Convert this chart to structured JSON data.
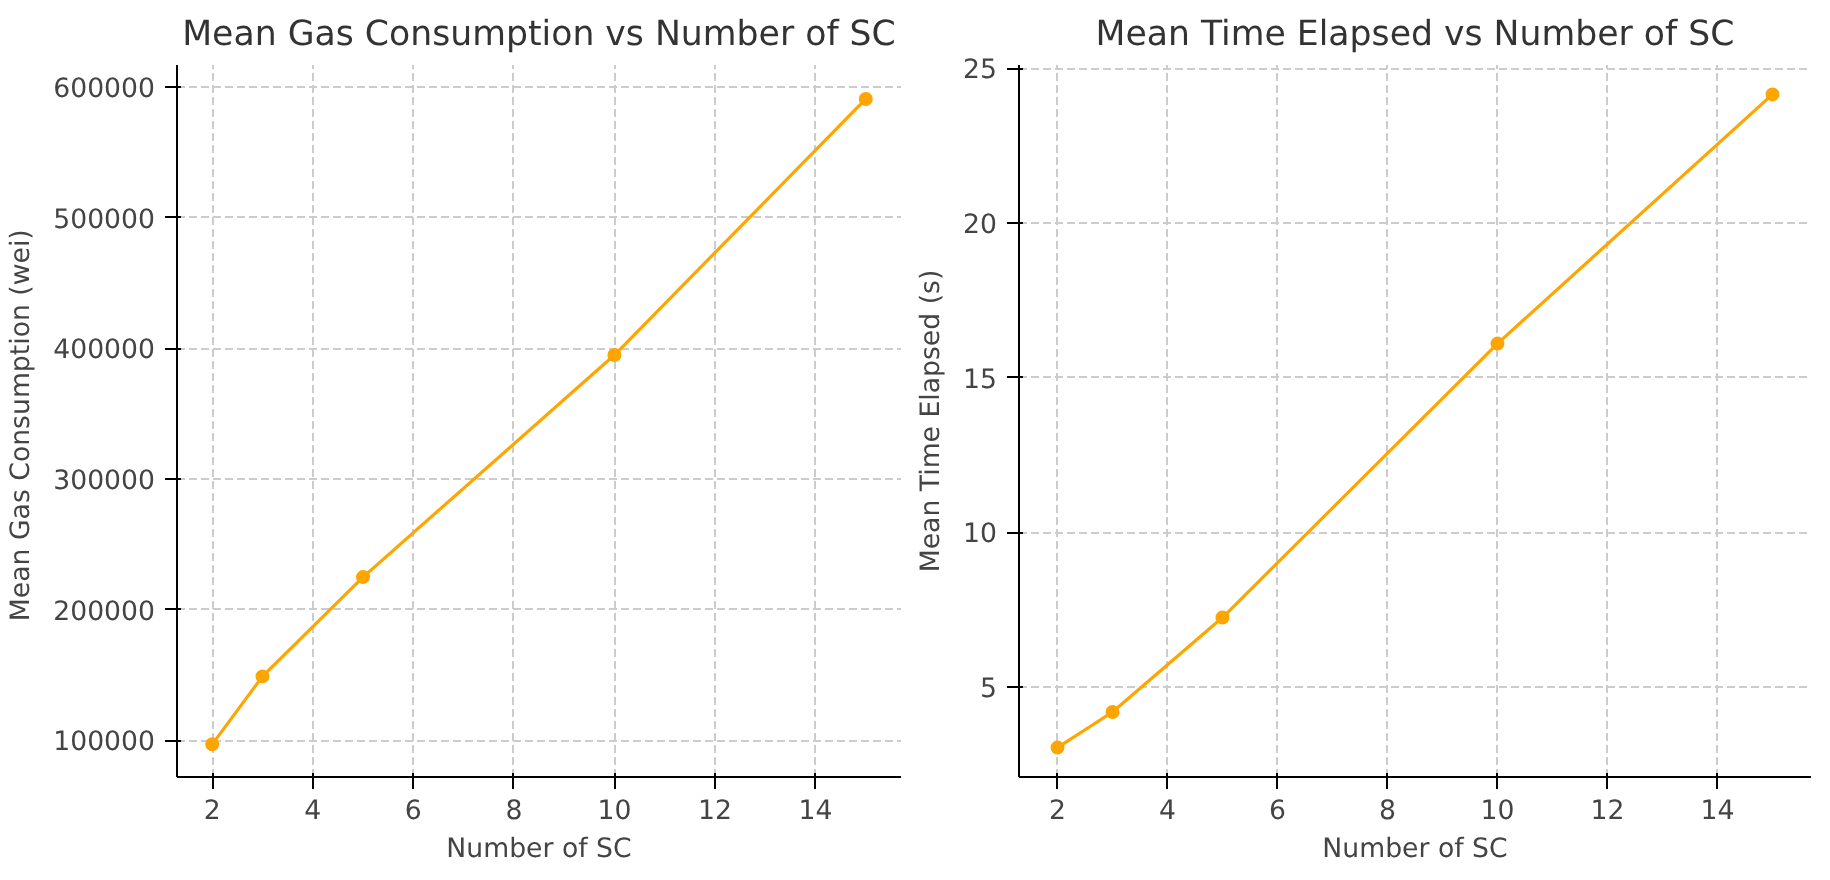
{
  "chart_data": [
    {
      "type": "line",
      "title": "Mean Gas Consumption vs Number of SC",
      "xlabel": "Number of SC",
      "ylabel": "Mean Gas Consumption  (wei)",
      "x": [
        2,
        3,
        5,
        10,
        15
      ],
      "series": [
        {
          "color": "#ffa500",
          "values": [
            97000,
            149000,
            225000,
            395000,
            591000
          ]
        }
      ],
      "xlim": [
        1.3,
        15.7
      ],
      "xticks": [
        2,
        4,
        6,
        8,
        10,
        12,
        14
      ],
      "ylim": [
        72000,
        617000
      ],
      "yticks": [
        100000,
        200000,
        300000,
        400000,
        500000,
        600000
      ],
      "grid": true,
      "marker": "circle",
      "line_style": "solid"
    },
    {
      "type": "line",
      "title": "Mean Time Elapsed vs Number of SC",
      "xlabel": "Number of SC",
      "ylabel": "Mean Time Elapsed (s)",
      "x": [
        2,
        3,
        5,
        10,
        15
      ],
      "series": [
        {
          "color": "#ffa500",
          "values": [
            3.05,
            4.2,
            7.25,
            16.1,
            24.15
          ]
        }
      ],
      "xlim": [
        1.3,
        15.7
      ],
      "xticks": [
        2,
        4,
        6,
        8,
        10,
        12,
        14
      ],
      "ylim": [
        2.1,
        25.1
      ],
      "yticks": [
        5,
        10,
        15,
        20,
        25
      ],
      "grid": true,
      "marker": "circle",
      "line_style": "solid"
    }
  ]
}
